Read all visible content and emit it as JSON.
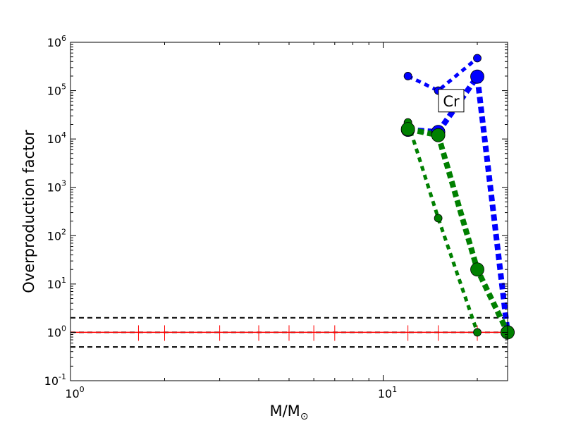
{
  "chart_data": {
    "type": "line",
    "xlabel": "M/M",
    "xlabel_sub": "⊙",
    "ylabel": "Overproduction factor",
    "xscale": "log",
    "yscale": "log",
    "xlim": [
      1,
      25
    ],
    "ylim": [
      0.1,
      1000000
    ],
    "x_ticks": [
      {
        "value": 1,
        "base": "10",
        "exp": "0"
      },
      {
        "value": 10,
        "base": "10",
        "exp": "1"
      }
    ],
    "y_ticks": [
      {
        "value": 0.1,
        "base": "10",
        "exp": "-1"
      },
      {
        "value": 1,
        "base": "10",
        "exp": "0"
      },
      {
        "value": 10,
        "base": "10",
        "exp": "1"
      },
      {
        "value": 100,
        "base": "10",
        "exp": "2"
      },
      {
        "value": 1000,
        "base": "10",
        "exp": "3"
      },
      {
        "value": 10000,
        "base": "10",
        "exp": "4"
      },
      {
        "value": 100000,
        "base": "10",
        "exp": "5"
      },
      {
        "value": 1000000,
        "base": "10",
        "exp": "6"
      }
    ],
    "annotation": "Cr",
    "annotation_pos": {
      "x": 16.5,
      "y": 60000
    },
    "reference_lines": [
      {
        "y": 2,
        "color": "#000000",
        "style": "dashed"
      },
      {
        "y": 1,
        "color": "#000000",
        "style": "dashed"
      },
      {
        "y": 0.5,
        "color": "#000000",
        "style": "dashed"
      },
      {
        "y": 1,
        "color": "#ff0000",
        "style": "solid"
      }
    ],
    "red_marker_x": [
      1.65,
      2,
      3,
      4,
      5,
      6,
      7,
      12,
      15,
      20,
      25
    ],
    "series": [
      {
        "color": "#0000ff",
        "weight": "thin",
        "x": [
          12,
          15,
          20
        ],
        "y": [
          200000,
          100000,
          470000
        ]
      },
      {
        "color": "#0000ff",
        "weight": "thick",
        "x": [
          12,
          15,
          20,
          25
        ],
        "y": [
          15500,
          14000,
          195000,
          1
        ]
      },
      {
        "color": "#008000",
        "weight": "thin",
        "x": [
          12,
          15,
          20
        ],
        "y": [
          22000,
          230,
          1
        ]
      },
      {
        "color": "#008000",
        "weight": "thick",
        "x": [
          12,
          15,
          20,
          25
        ],
        "y": [
          16000,
          12000,
          20,
          1
        ]
      }
    ]
  }
}
